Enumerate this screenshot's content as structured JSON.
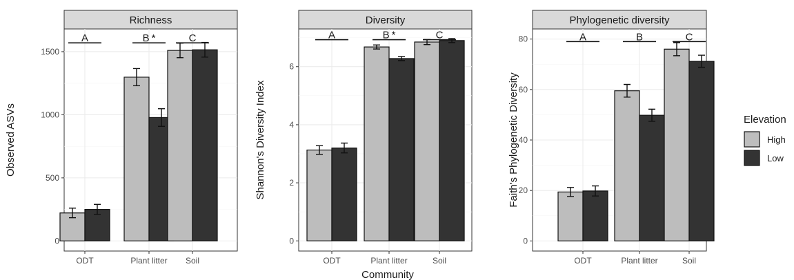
{
  "shared_xlabel": "Community",
  "legend": {
    "title": "Elevation",
    "items": [
      {
        "name": "High",
        "color": "#bdbdbd"
      },
      {
        "name": "Low",
        "color": "#333333"
      }
    ]
  },
  "chart_data": [
    {
      "type": "bar",
      "title": "Richness",
      "ylabel": "Observed ASVs",
      "categories": [
        "ODT",
        "Plant litter",
        "Soil"
      ],
      "ylim": [
        -80,
        1680
      ],
      "yticks": [
        0,
        500,
        1000,
        1500
      ],
      "series": [
        {
          "name": "High",
          "values": [
            222,
            1298,
            1510
          ],
          "errors": [
            38,
            68,
            58
          ]
        },
        {
          "name": "Low",
          "values": [
            250,
            978,
            1515
          ],
          "errors": [
            40,
            70,
            58
          ]
        }
      ],
      "significance": [
        {
          "category": "ODT",
          "label": "A",
          "y": 1570
        },
        {
          "category": "Plant litter",
          "label": "B *",
          "y": 1570
        },
        {
          "category": "Soil",
          "label": "C",
          "y": 1570
        }
      ]
    },
    {
      "type": "bar",
      "title": "Diversity",
      "ylabel": "Shannon's Diversity Index",
      "categories": [
        "ODT",
        "Plant litter",
        "Soil"
      ],
      "ylim": [
        -0.35,
        7.3
      ],
      "yticks": [
        0,
        2,
        4,
        6
      ],
      "series": [
        {
          "name": "High",
          "values": [
            3.13,
            6.68,
            6.85
          ],
          "errors": [
            0.15,
            0.07,
            0.09
          ]
        },
        {
          "name": "Low",
          "values": [
            3.2,
            6.28,
            6.9
          ],
          "errors": [
            0.17,
            0.07,
            0.07
          ]
        }
      ],
      "significance": [
        {
          "category": "ODT",
          "label": "A",
          "y": 6.93
        },
        {
          "category": "Plant litter",
          "label": "B *",
          "y": 6.93
        },
        {
          "category": "Soil",
          "label": "C",
          "y": 6.93
        }
      ]
    },
    {
      "type": "bar",
      "title": "Phylogenetic diversity",
      "ylabel": "Faith's Phylogenetic Diversity",
      "categories": [
        "ODT",
        "Plant litter",
        "Soil"
      ],
      "ylim": [
        -4,
        84
      ],
      "yticks": [
        0,
        20,
        40,
        60,
        80
      ],
      "series": [
        {
          "name": "High",
          "values": [
            19.4,
            59.5,
            76
          ],
          "errors": [
            1.8,
            2.5,
            2.6
          ]
        },
        {
          "name": "Low",
          "values": [
            19.8,
            49.8,
            71.2
          ],
          "errors": [
            2,
            2.4,
            2.4
          ]
        }
      ],
      "significance": [
        {
          "category": "ODT",
          "label": "A",
          "y": 79
        },
        {
          "category": "Plant litter",
          "label": "B",
          "y": 79
        },
        {
          "category": "Soil",
          "label": "C",
          "y": 79
        }
      ]
    }
  ]
}
